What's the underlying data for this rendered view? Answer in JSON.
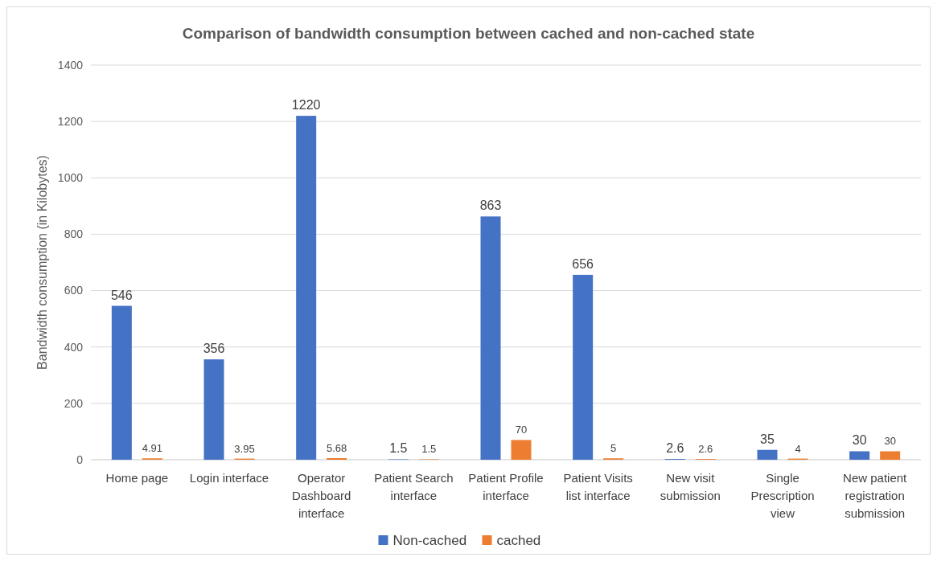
{
  "chart_data": {
    "type": "bar",
    "title": "Comparison of bandwidth consumption between cached and non-cached state",
    "ylabel": "Bandwidth consumption (in Kilobytes)",
    "categories": [
      "Home page",
      "Login interface",
      "Operator Dashboard interface",
      "Patient Search interface",
      "Patient Profile interface",
      "Patient Visits list interface",
      "New visit submission",
      "Single Prescription view",
      "New patient registration submission"
    ],
    "series": [
      {
        "name": "Non-cached",
        "color": "#4472c4",
        "values": [
          546,
          356,
          1220,
          1.5,
          863,
          656,
          2.6,
          35,
          30
        ]
      },
      {
        "name": "cached",
        "color": "#ed7d31",
        "values": [
          4.91,
          3.95,
          5.68,
          1.5,
          70,
          5,
          2.6,
          4,
          30
        ]
      }
    ],
    "ylim": [
      0,
      1400
    ],
    "yticks": [
      0,
      200,
      400,
      600,
      800,
      1000,
      1200,
      1400
    ],
    "grid": "y",
    "legend": "bottom",
    "data_labels": true
  }
}
